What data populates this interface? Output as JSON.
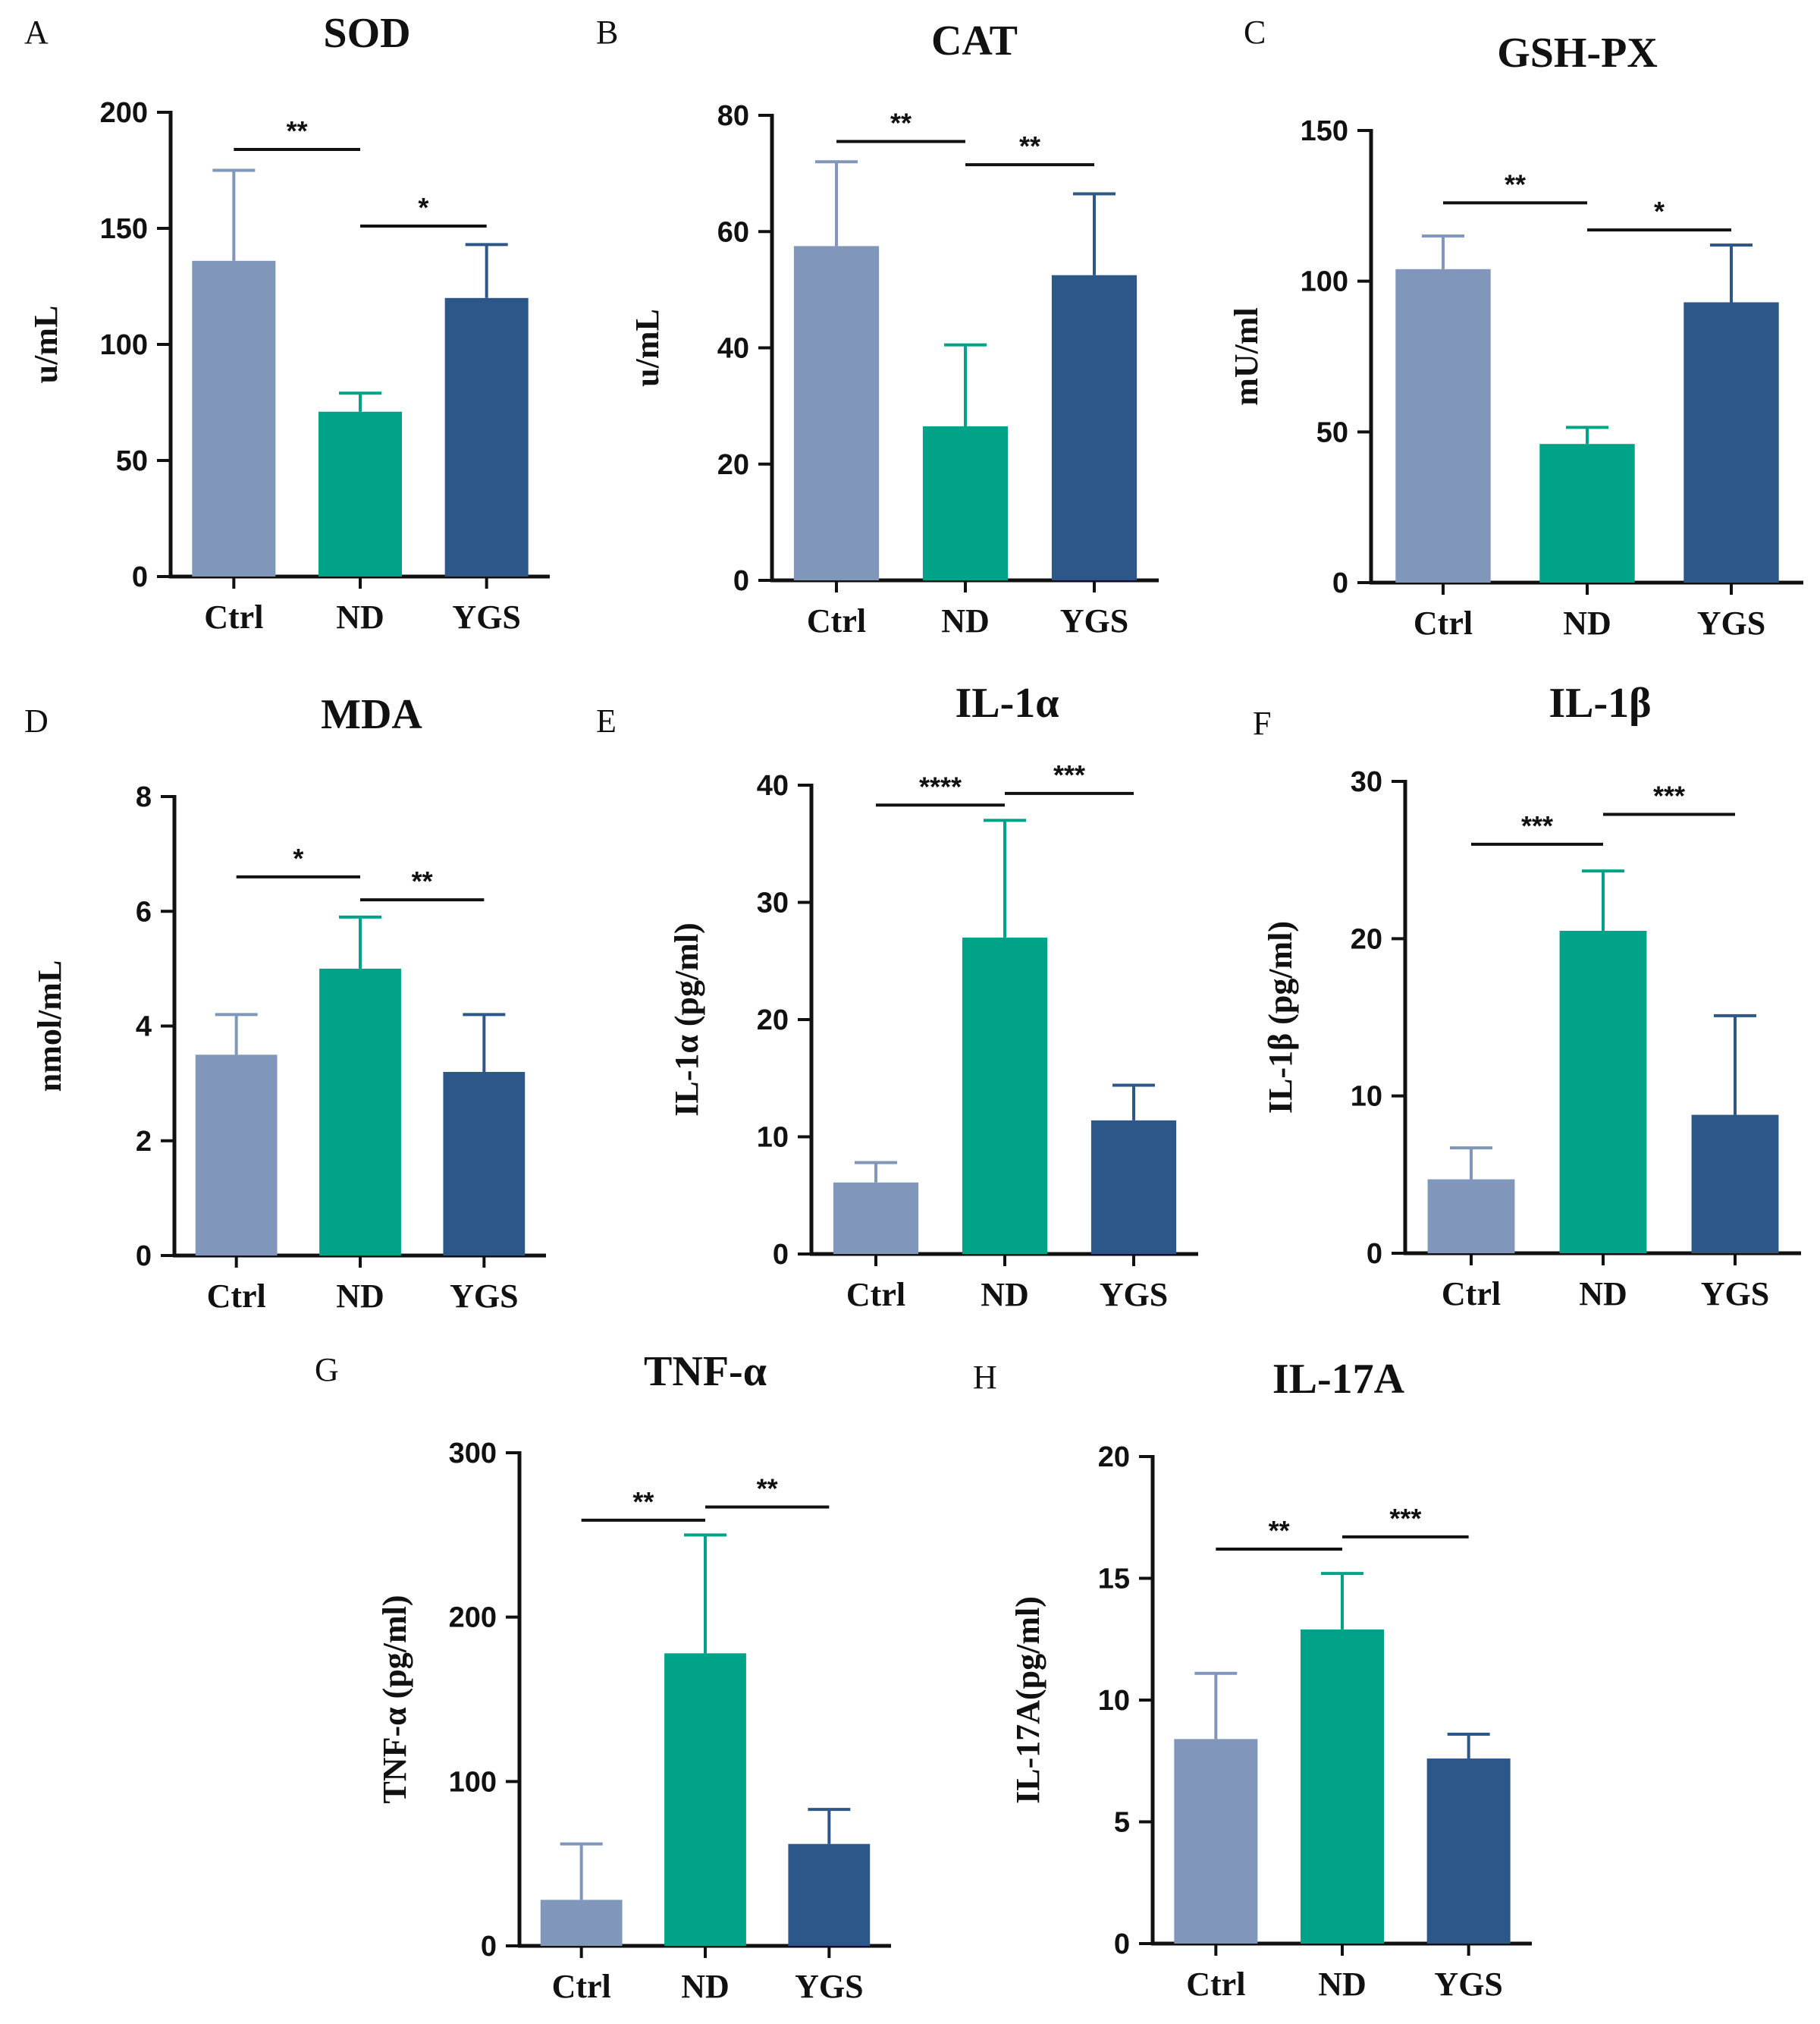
{
  "colors": {
    "Ctrl": "#8196bb",
    "ND": "#00a388",
    "YGS": "#2e5789",
    "axis": "#111111"
  },
  "chart_data": [
    {
      "panel": "A",
      "type": "bar",
      "title": "SOD",
      "ylabel": "u/mL",
      "categories": [
        "Ctrl",
        "ND",
        "YGS"
      ],
      "values": [
        136,
        71,
        120
      ],
      "errors": [
        39,
        8,
        23
      ],
      "ylim": [
        0,
        200
      ],
      "yticks": [
        0,
        50,
        100,
        150,
        200
      ],
      "sig": [
        {
          "from": 0,
          "to": 1,
          "label": "**",
          "level": 184
        },
        {
          "from": 1,
          "to": 2,
          "label": "*",
          "level": 151
        }
      ]
    },
    {
      "panel": "B",
      "type": "bar",
      "title": "CAT",
      "ylabel": "u/mL",
      "categories": [
        "Ctrl",
        "ND",
        "YGS"
      ],
      "values": [
        57.5,
        26.5,
        52.5
      ],
      "errors": [
        14.5,
        14,
        14
      ],
      "ylim": [
        0,
        80
      ],
      "yticks": [
        0,
        20,
        40,
        60,
        80
      ],
      "sig": [
        {
          "from": 0,
          "to": 1,
          "label": "**",
          "level": 75.5
        },
        {
          "from": 1,
          "to": 2,
          "label": "**",
          "level": 71.5
        }
      ]
    },
    {
      "panel": "C",
      "type": "bar",
      "title": "GSH-PX",
      "ylabel": "mU/ml",
      "categories": [
        "Ctrl",
        "ND",
        "YGS"
      ],
      "values": [
        104,
        46,
        93
      ],
      "errors": [
        11,
        5.5,
        19
      ],
      "ylim": [
        0,
        150
      ],
      "yticks": [
        0,
        50,
        100,
        150
      ],
      "sig": [
        {
          "from": 0,
          "to": 1,
          "label": "**",
          "level": 126
        },
        {
          "from": 1,
          "to": 2,
          "label": "*",
          "level": 117
        }
      ]
    },
    {
      "panel": "D",
      "type": "bar",
      "title": "MDA",
      "ylabel": "nmol/mL",
      "categories": [
        "Ctrl",
        "ND",
        "YGS"
      ],
      "values": [
        3.5,
        5.0,
        3.2
      ],
      "errors": [
        0.7,
        0.9,
        1.0
      ],
      "ylim": [
        0,
        8
      ],
      "yticks": [
        0,
        2,
        4,
        6,
        8
      ],
      "sig": [
        {
          "from": 0,
          "to": 1,
          "label": "*",
          "level": 6.6
        },
        {
          "from": 1,
          "to": 2,
          "label": "**",
          "level": 6.2
        }
      ]
    },
    {
      "panel": "E",
      "type": "bar",
      "title": "IL-1α",
      "ylabel": "IL-1α (pg/ml)",
      "categories": [
        "Ctrl",
        "ND",
        "YGS"
      ],
      "values": [
        6.1,
        27,
        11.4
      ],
      "errors": [
        1.7,
        10,
        3
      ],
      "ylim": [
        0,
        40
      ],
      "yticks": [
        0,
        10,
        20,
        30,
        40
      ],
      "sig": [
        {
          "from": 0,
          "to": 1,
          "label": "****",
          "level": 38.3
        },
        {
          "from": 1,
          "to": 2,
          "label": "***",
          "level": 39.3
        }
      ]
    },
    {
      "panel": "F",
      "type": "bar",
      "title": "IL-1β",
      "ylabel": "IL-1β (pg/ml)",
      "categories": [
        "Ctrl",
        "ND",
        "YGS"
      ],
      "values": [
        4.7,
        20.5,
        8.8
      ],
      "errors": [
        2,
        3.8,
        6.3
      ],
      "ylim": [
        0,
        30
      ],
      "yticks": [
        0,
        10,
        20,
        30
      ],
      "sig": [
        {
          "from": 0,
          "to": 1,
          "label": "***",
          "level": 26
        },
        {
          "from": 1,
          "to": 2,
          "label": "***",
          "level": 27.9
        }
      ]
    },
    {
      "panel": "G",
      "type": "bar",
      "title": "TNF-α",
      "ylabel": "TNF-α (pg/ml)",
      "categories": [
        "Ctrl",
        "ND",
        "YGS"
      ],
      "values": [
        28,
        178,
        62
      ],
      "errors": [
        34,
        72,
        21
      ],
      "ylim": [
        0,
        300
      ],
      "yticks": [
        0,
        100,
        200,
        300
      ],
      "sig": [
        {
          "from": 0,
          "to": 1,
          "label": "**",
          "level": 259
        },
        {
          "from": 1,
          "to": 2,
          "label": "**",
          "level": 267
        }
      ]
    },
    {
      "panel": "H",
      "type": "bar",
      "title": "IL-17A",
      "ylabel": "IL-17A(pg/ml)",
      "categories": [
        "Ctrl",
        "ND",
        "YGS"
      ],
      "values": [
        8.4,
        12.9,
        7.6
      ],
      "errors": [
        2.7,
        2.3,
        1.0
      ],
      "ylim": [
        0,
        20
      ],
      "yticks": [
        0,
        5,
        10,
        15,
        20
      ],
      "sig": [
        {
          "from": 0,
          "to": 1,
          "label": "**",
          "level": 16.2
        },
        {
          "from": 1,
          "to": 2,
          "label": "***",
          "level": 16.7
        }
      ]
    }
  ]
}
